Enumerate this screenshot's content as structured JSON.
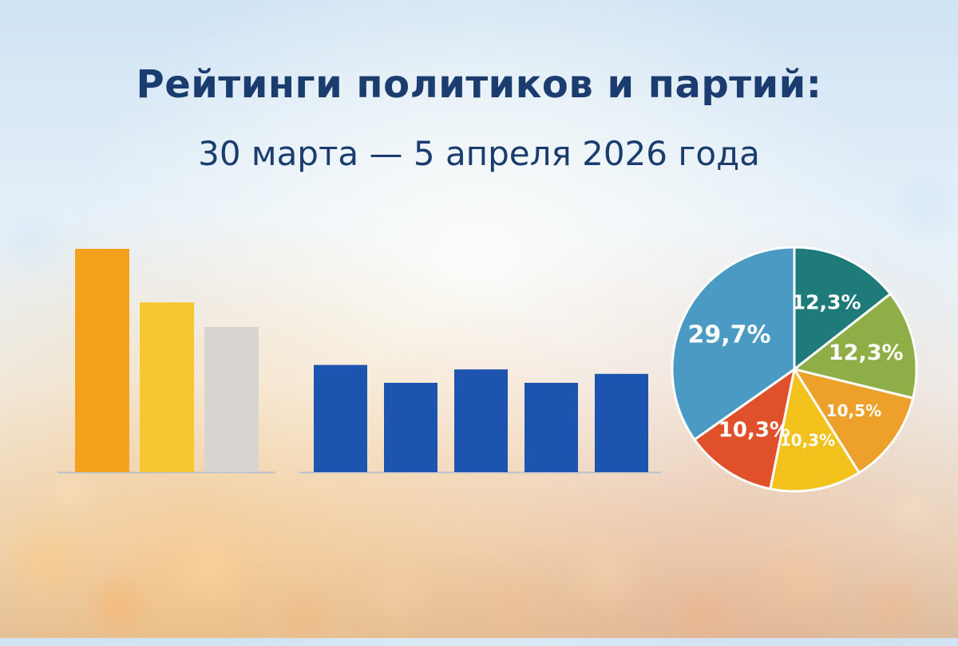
{
  "title": "Рейтинги политиков и партий:",
  "subtitle": "30 марта — 5 апреля 2026 года",
  "chart_data": [
    {
      "type": "bar",
      "series": [
        {
          "values": [
            100,
            76,
            65
          ]
        }
      ],
      "colors": [
        "#f4a21d",
        "#f7c731",
        "#d8d4cf"
      ]
    },
    {
      "type": "bar",
      "series": [
        {
          "values": [
            48,
            40,
            46,
            40,
            44
          ]
        }
      ],
      "colors": [
        "#1d54b0",
        "#1d54b0",
        "#1d54b0",
        "#1d54b0",
        "#1d54b0"
      ]
    },
    {
      "type": "pie",
      "slices": [
        {
          "value": 12.3,
          "label": "12,3%",
          "color": "#1f7a7a"
        },
        {
          "value": 12.3,
          "label": "12,3%",
          "color": "#8fae48"
        },
        {
          "value": 10.5,
          "label": "10,5%",
          "color": "#eea12a"
        },
        {
          "value": 10.3,
          "label": "10,3%",
          "color": "#f4c21c"
        },
        {
          "value": 10.3,
          "label": "10,3%",
          "color": "#e0502a"
        },
        {
          "value": 29.7,
          "label": "29,7%",
          "color": "#4a9ac4"
        }
      ]
    }
  ]
}
